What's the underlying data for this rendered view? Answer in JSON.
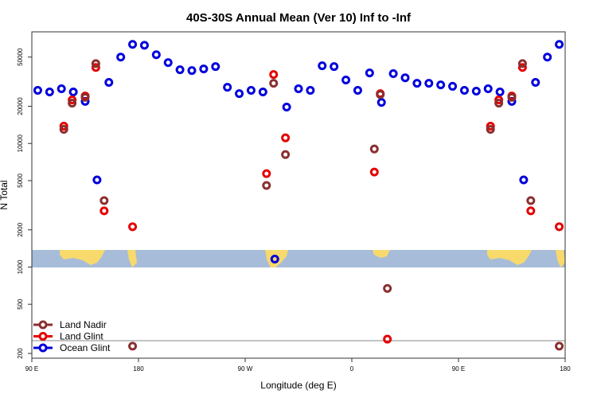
{
  "chart_data": {
    "type": "scatter",
    "title": "40S-30S Annual Mean (Ver 10)   Inf to -Inf",
    "x_label": "Longitude (deg E)",
    "y_label": "N Total",
    "xlim": [
      90,
      540
    ],
    "xticks": [
      {
        "value": 90,
        "label": "90 E"
      },
      180,
      {
        "value": 270,
        "label": "90 W"
      },
      {
        "value": 360,
        "label": "0"
      },
      {
        "value": 450,
        "label": "90 E"
      },
      {
        "value": 540,
        "label": "180"
      }
    ],
    "ylim": [
      183,
      80000
    ],
    "yticks": [
      200,
      500,
      1000,
      2000,
      5000,
      10000,
      20000,
      50000
    ],
    "y_scale": "log",
    "legend": "bottom-left",
    "series": [
      {
        "name": "Land Nadir",
        "color": "#8b2f2f",
        "x": [
          117,
          124,
          135,
          144,
          151,
          175,
          288,
          294,
          304,
          379,
          384,
          390,
          477,
          484,
          495,
          504,
          511,
          535
        ],
        "values": [
          13000,
          21200,
          23600,
          44300,
          3450,
          229,
          4570,
          30700,
          8130,
          9020,
          24900,
          671,
          13000,
          21200,
          23600,
          44300,
          3450,
          229
        ]
      },
      {
        "name": "Land Glint",
        "color": "#e60000",
        "x": [
          117,
          124,
          135,
          144,
          151,
          175,
          288,
          294,
          304,
          379,
          384,
          390,
          477,
          484,
          495,
          504,
          511,
          535
        ],
        "values": [
          13800,
          22500,
          24200,
          41200,
          2850,
          2120,
          5700,
          36100,
          11100,
          5870,
          25300,
          261,
          13800,
          22500,
          24200,
          41200,
          2850,
          2120
        ]
      },
      {
        "name": "Ocean Glint",
        "color": "#0000dd",
        "x": [
          95,
          105,
          115,
          125,
          135,
          145,
          155,
          165,
          175,
          185,
          195,
          205,
          215,
          225,
          235,
          245,
          255,
          265,
          275,
          285,
          295,
          305,
          315,
          325,
          335,
          345,
          355,
          365,
          375,
          385,
          395,
          405,
          415,
          425,
          435,
          445,
          455,
          465,
          475,
          485,
          495,
          505,
          515,
          525,
          535
        ],
        "values": [
          26900,
          26100,
          27700,
          26100,
          21900,
          5070,
          31200,
          50000,
          63300,
          62300,
          52200,
          45100,
          39500,
          38900,
          40100,
          41900,
          28500,
          25300,
          26900,
          26100,
          1160,
          19700,
          27700,
          26900,
          42500,
          41900,
          32600,
          26900,
          37200,
          21500,
          36700,
          34000,
          30700,
          30700,
          29800,
          29000,
          26900,
          26500,
          27700,
          26100,
          21900,
          5070,
          31200,
          50000,
          63300
        ]
      }
    ]
  }
}
